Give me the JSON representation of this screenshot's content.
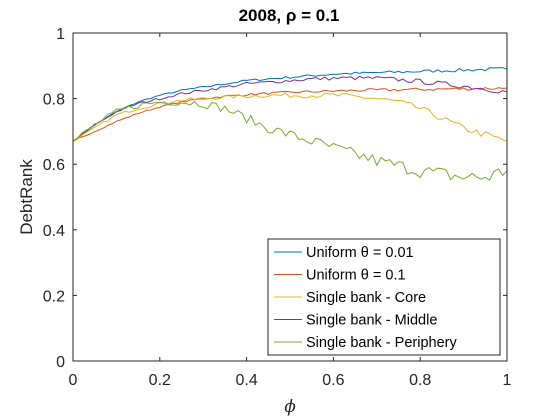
{
  "chart_data": {
    "type": "line",
    "title": "2008, ρ = 0.1",
    "xlabel": "ϕ",
    "ylabel": "DebtRank",
    "xlim": [
      0,
      1
    ],
    "ylim": [
      0,
      1
    ],
    "xticks": [
      0,
      0.2,
      0.4,
      0.6,
      0.8,
      1
    ],
    "yticks": [
      0,
      0.2,
      0.4,
      0.6,
      0.8,
      1
    ],
    "xtick_labels": [
      "0",
      "0.2",
      "0.4",
      "0.6",
      "0.8",
      "1"
    ],
    "ytick_labels": [
      "0",
      "0.2",
      "0.4",
      "0.6",
      "0.8",
      "1"
    ],
    "grid": false,
    "legend_position": "bottom-right",
    "x": [
      0,
      0.05,
      0.1,
      0.15,
      0.2,
      0.25,
      0.3,
      0.35,
      0.4,
      0.45,
      0.5,
      0.55,
      0.6,
      0.65,
      0.7,
      0.75,
      0.8,
      0.85,
      0.9,
      0.95,
      1
    ],
    "series": [
      {
        "name": "Uniform θ = 0.01",
        "color": "#0072BD",
        "values": [
          0.67,
          0.72,
          0.76,
          0.79,
          0.81,
          0.825,
          0.835,
          0.845,
          0.855,
          0.86,
          0.865,
          0.87,
          0.875,
          0.877,
          0.879,
          0.881,
          0.883,
          0.885,
          0.887,
          0.889,
          0.89
        ]
      },
      {
        "name": "Uniform θ = 0.1",
        "color": "#D95319",
        "values": [
          0.67,
          0.7,
          0.73,
          0.755,
          0.775,
          0.79,
          0.8,
          0.807,
          0.812,
          0.816,
          0.819,
          0.821,
          0.823,
          0.825,
          0.826,
          0.827,
          0.828,
          0.829,
          0.83,
          0.831,
          0.832
        ]
      },
      {
        "name": "Single bank - Core",
        "color": "#EDB120",
        "values": [
          0.67,
          0.71,
          0.75,
          0.77,
          0.785,
          0.795,
          0.8,
          0.805,
          0.808,
          0.81,
          0.81,
          0.81,
          0.81,
          0.806,
          0.8,
          0.79,
          0.77,
          0.74,
          0.71,
          0.69,
          0.67
        ]
      },
      {
        "name": "Single bank - Middle",
        "color": "#7E2F8E",
        "values": [
          0.67,
          0.72,
          0.76,
          0.785,
          0.8,
          0.815,
          0.825,
          0.835,
          0.845,
          0.85,
          0.855,
          0.86,
          0.862,
          0.863,
          0.862,
          0.858,
          0.852,
          0.845,
          0.838,
          0.83,
          0.82
        ]
      },
      {
        "name": "Single bank - Periphery",
        "color": "#77AC30",
        "values": [
          0.67,
          0.72,
          0.76,
          0.78,
          0.79,
          0.79,
          0.785,
          0.77,
          0.74,
          0.71,
          0.69,
          0.67,
          0.65,
          0.63,
          0.61,
          0.595,
          0.58,
          0.57,
          0.56,
          0.56,
          0.58
        ]
      }
    ]
  }
}
